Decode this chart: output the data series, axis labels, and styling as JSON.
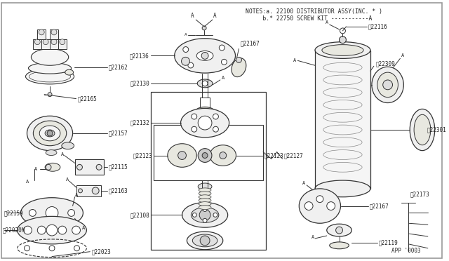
{
  "bg_color": "#ffffff",
  "border_color": "#999999",
  "line_color": "#333333",
  "text_color": "#222222",
  "title_line1": "NOTES:a. 22100 DISTRIBUTOR ASSY(INC. * )",
  "title_line2": "     b.* 22750 SCREW KIT -----------A",
  "app_code": "APP '0003",
  "figsize": [
    6.4,
    3.72
  ],
  "dpi": 100
}
